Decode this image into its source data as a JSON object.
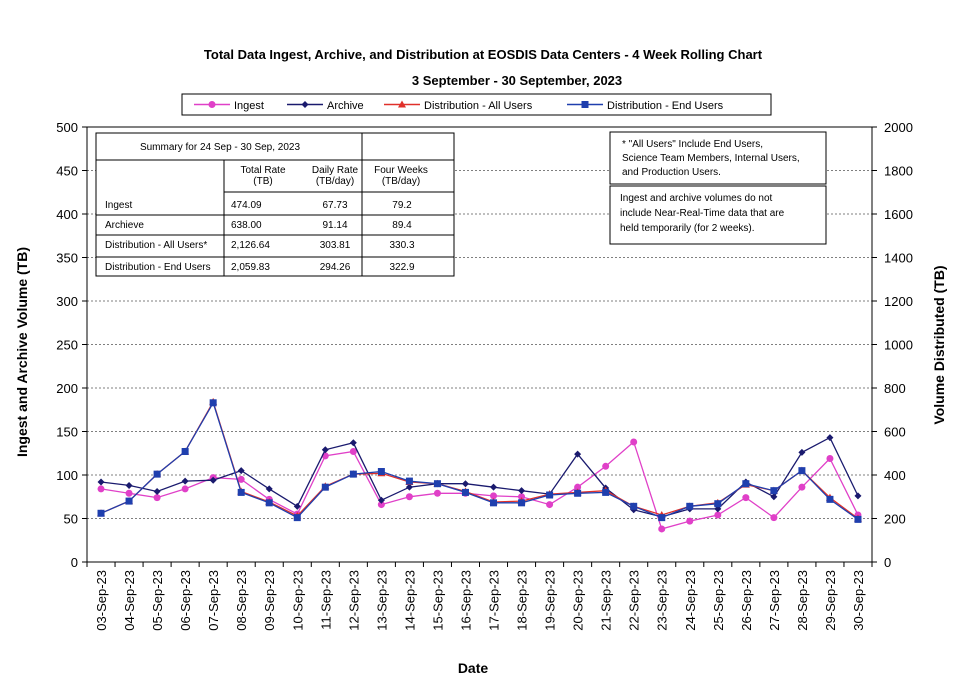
{
  "chart_data": {
    "type": "line",
    "title": "Total Data Ingest, Archive, and  Distribution at EOSDIS Data Centers - 4 Week Rolling Chart",
    "subtitle": "3 September   - 30 September, 2023",
    "xlabel": "Date",
    "ylabel_left": "Ingest and Archive Volume (TB)",
    "ylabel_right": "Volume Distributed (TB)",
    "ylim_left": [
      0,
      500
    ],
    "ylim_right": [
      0,
      2000
    ],
    "yticks_left": [
      "0",
      "50",
      "100",
      "150",
      "200",
      "250",
      "300",
      "350",
      "400",
      "450",
      "500"
    ],
    "yticks_right": [
      "0",
      "200",
      "400",
      "600",
      "800",
      "1000",
      "1200",
      "1400",
      "1600",
      "1800",
      "2000"
    ],
    "grid": "horizontal dashed",
    "legend_position": "top",
    "x": [
      "03-Sep-23",
      "04-Sep-23",
      "05-Sep-23",
      "06-Sep-23",
      "07-Sep-23",
      "08-Sep-23",
      "09-Sep-23",
      "10-Sep-23",
      "11-Sep-23",
      "12-Sep-23",
      "13-Sep-23",
      "14-Sep-23",
      "15-Sep-23",
      "16-Sep-23",
      "17-Sep-23",
      "18-Sep-23",
      "19-Sep-23",
      "20-Sep-23",
      "21-Sep-23",
      "22-Sep-23",
      "23-Sep-23",
      "24-Sep-23",
      "25-Sep-23",
      "26-Sep-23",
      "27-Sep-23",
      "28-Sep-23",
      "29-Sep-23",
      "30-Sep-23"
    ],
    "series": [
      {
        "name": "Ingest",
        "axis": "left",
        "color": "#e040c8",
        "marker": "circle",
        "values": [
          84,
          79,
          74,
          84,
          97,
          95,
          72,
          55,
          122,
          127,
          66,
          75,
          79,
          79,
          76,
          75,
          66,
          86,
          110,
          138,
          38,
          47,
          54,
          74,
          51,
          86,
          119,
          54
        ]
      },
      {
        "name": "Archive",
        "axis": "left",
        "color": "#1a1a6e",
        "marker": "diamond",
        "values": [
          92,
          88,
          81,
          93,
          94,
          105,
          84,
          64,
          129,
          137,
          71,
          86,
          90,
          90,
          86,
          82,
          78,
          124,
          85,
          60,
          52,
          61,
          61,
          92,
          75,
          126,
          143,
          76
        ]
      },
      {
        "name": "Distribution - All Users",
        "axis": "right",
        "color": "#e0302a",
        "marker": "triangle",
        "values": [
          224,
          280,
          404,
          508,
          736,
          324,
          276,
          212,
          348,
          404,
          408,
          368,
          360,
          324,
          276,
          280,
          312,
          320,
          328,
          256,
          216,
          256,
          272,
          356,
          328,
          420,
          296,
          200
        ]
      },
      {
        "name": "Distribution - End Users",
        "axis": "right",
        "color": "#1f3fae",
        "marker": "square",
        "values": [
          224,
          280,
          404,
          508,
          732,
          320,
          272,
          204,
          344,
          404,
          416,
          372,
          360,
          320,
          272,
          272,
          308,
          316,
          320,
          256,
          204,
          256,
          268,
          360,
          328,
          420,
          288,
          196
        ]
      }
    ],
    "summary_table": {
      "title": "Summary  for  24 Sep -  30 Sep, 2023",
      "headers": [
        [
          "Total  Rate",
          "(TB)"
        ],
        [
          "Daily Rate",
          "(TB/day)"
        ],
        [
          "Four Weeks",
          "(TB/day)"
        ]
      ],
      "rows": [
        {
          "label": "Ingest",
          "values": [
            "474.09",
            "67.73",
            "79.2"
          ]
        },
        {
          "label": "Archieve",
          "values": [
            "638.00",
            "91.14",
            "89.4"
          ]
        },
        {
          "label": "Distribution - All Users*",
          "values": [
            "2,126.64",
            "303.81",
            "330.3"
          ]
        },
        {
          "label": "Distribution - End Users",
          "values": [
            "2,059.83",
            "294.26",
            "322.9"
          ]
        }
      ]
    },
    "notes": [
      {
        "lines": [
          "* \"All Users\" Include End Users,",
          "Science Team Members, Internal Users,",
          "and Production Users."
        ]
      },
      {
        "lines": [
          "Ingest and archive volumes do not",
          "include Near-Real-Time data that are",
          "held temporarily (for 2 weeks)."
        ]
      }
    ]
  }
}
